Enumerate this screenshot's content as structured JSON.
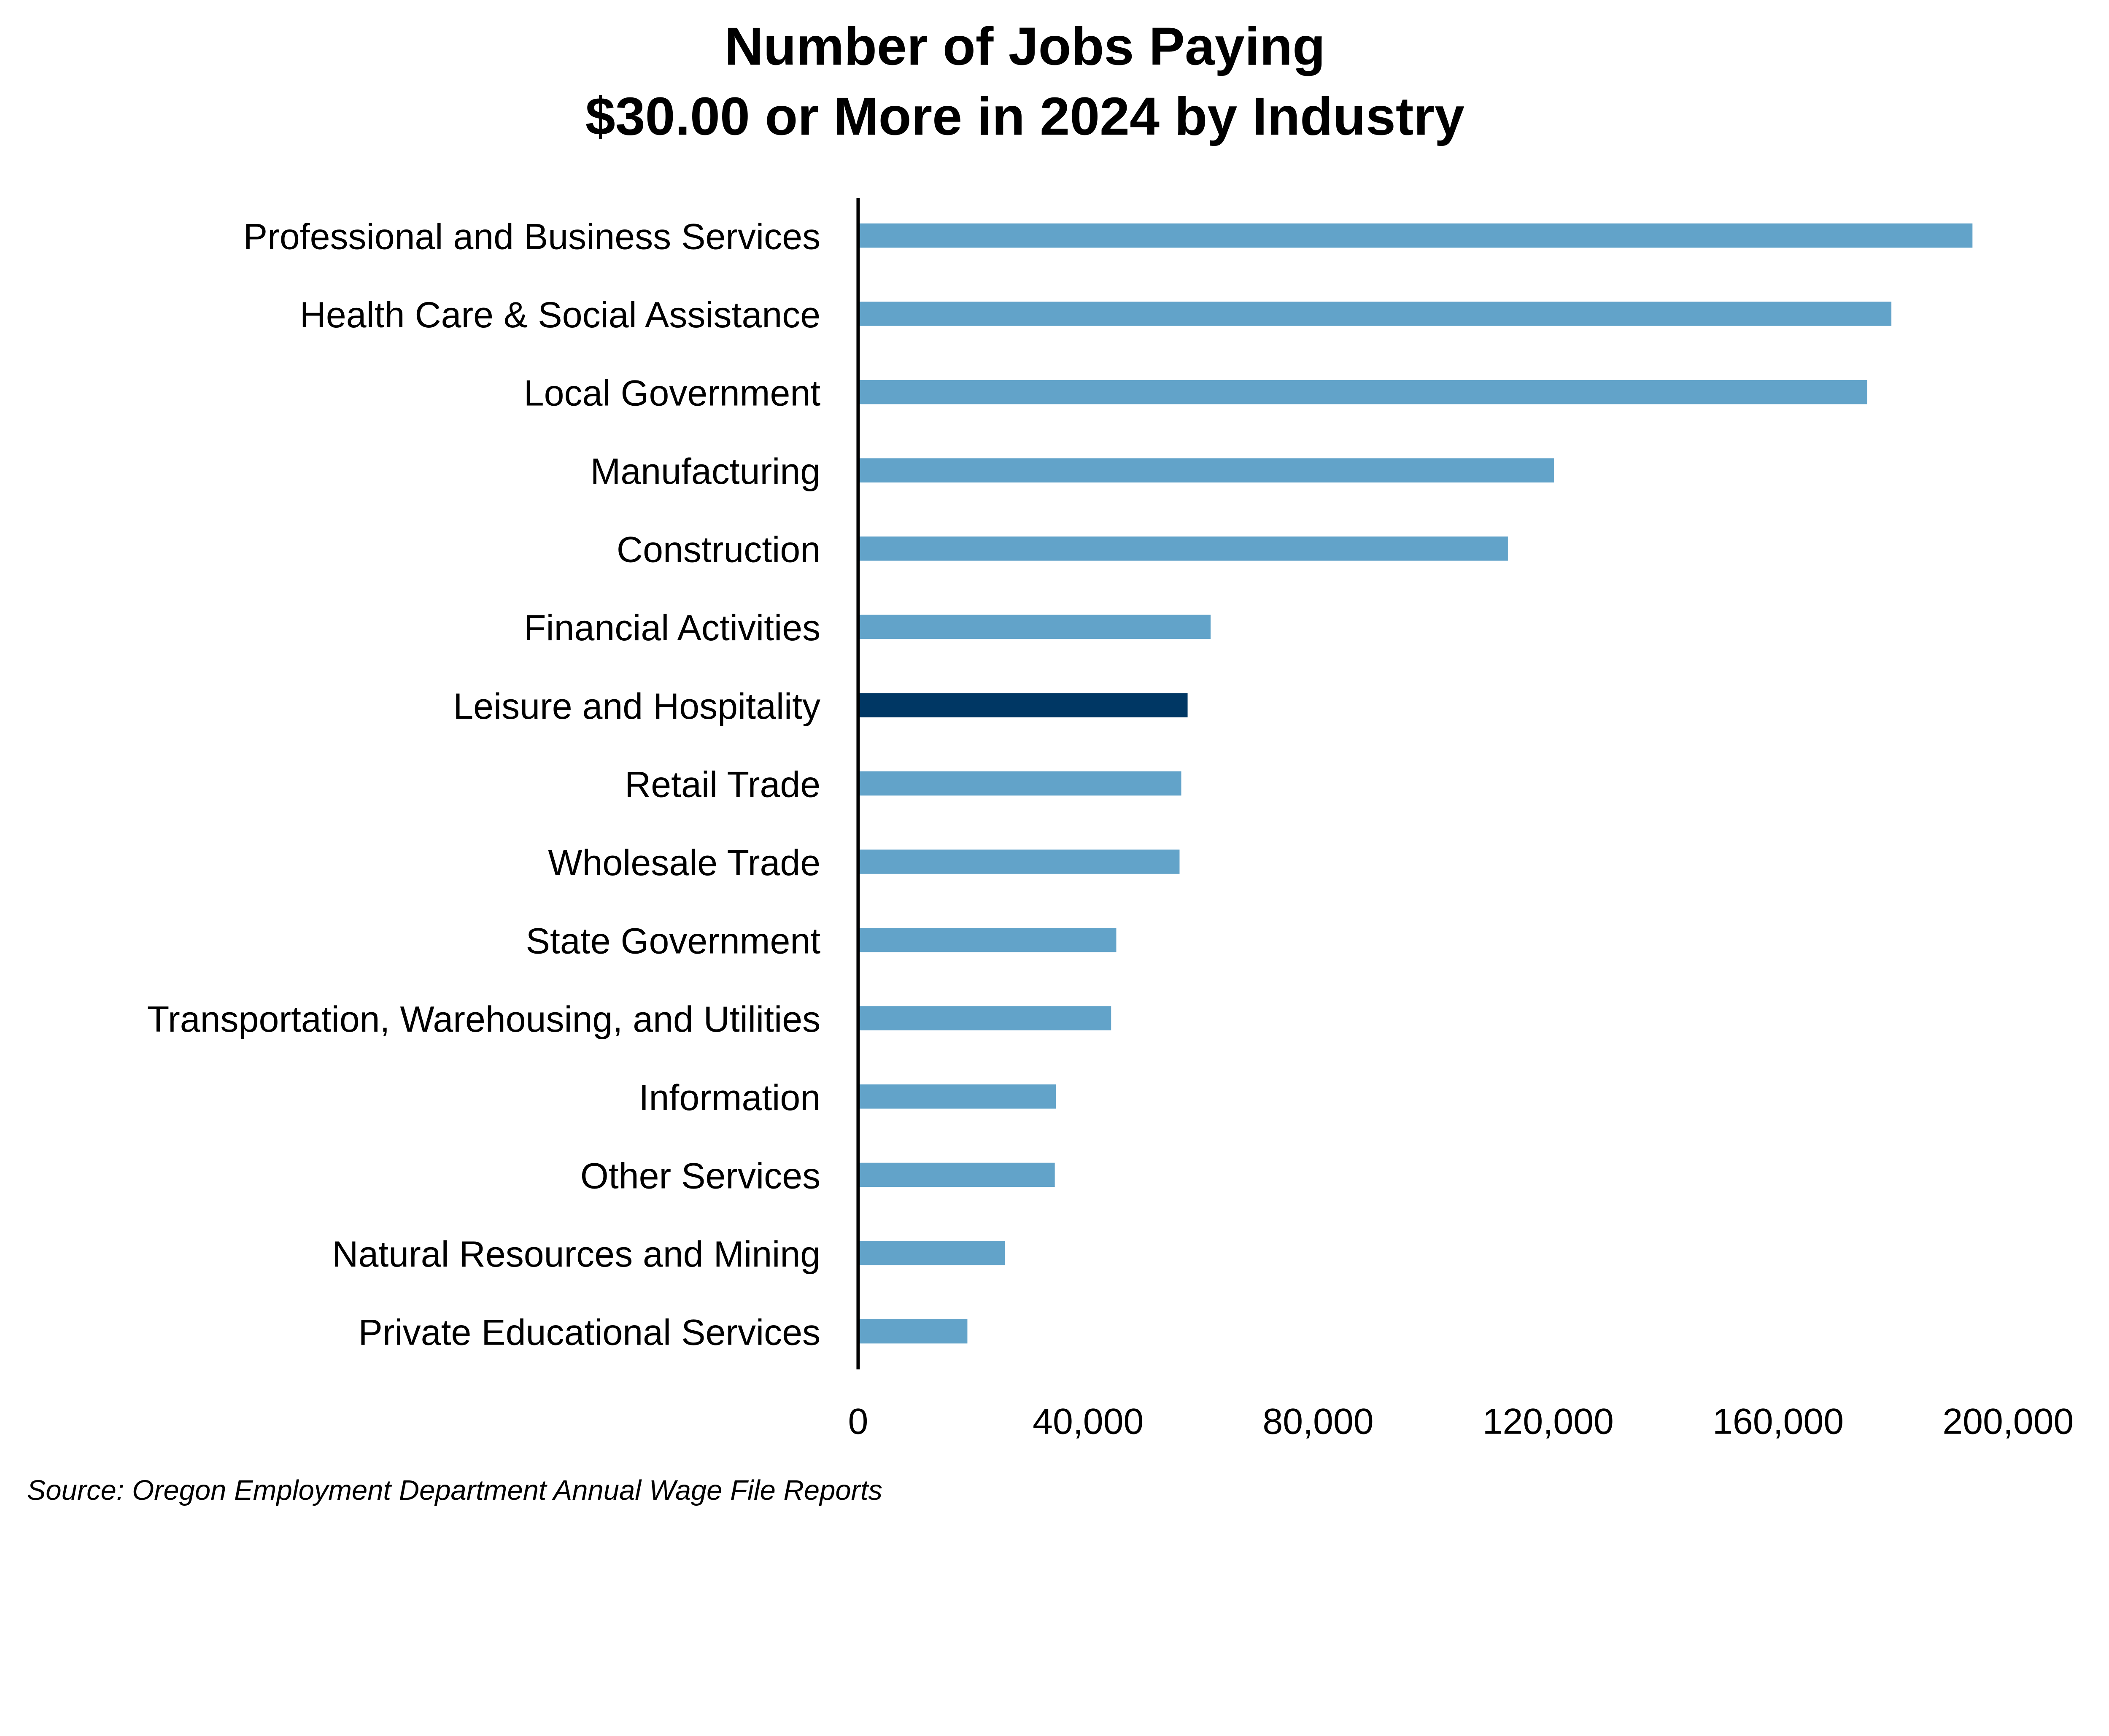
{
  "chart_data": {
    "type": "bar",
    "orientation": "horizontal",
    "title_lines": [
      "Number of Jobs Paying",
      "$30.00 or More in 2024 by Industry"
    ],
    "categories": [
      "Professional and Business Services",
      "Health Care & Social Assistance",
      "Local Government",
      "Manufacturing",
      "Construction",
      "Financial Activities",
      "Leisure and Hospitality",
      "Retail Trade",
      "Wholesale Trade",
      "State Government",
      "Transportation, Warehousing, and Utilities",
      "Information",
      "Other Services",
      "Natural Resources and Mining",
      "Private Educational Services"
    ],
    "values": [
      193800,
      179700,
      175500,
      121000,
      113000,
      61300,
      57300,
      56200,
      55900,
      44900,
      44000,
      34400,
      34200,
      25500,
      19000
    ],
    "highlight_category": "Leisure and Hospitality",
    "xlim": [
      0,
      200000
    ],
    "x_ticks": [
      "0",
      "40,000",
      "80,000",
      "120,000",
      "160,000",
      "200,000"
    ],
    "x_tick_values": [
      0,
      40000,
      80000,
      120000,
      160000,
      200000
    ],
    "grid": false,
    "legend": "none",
    "colors": {
      "bar": "#62A3C9",
      "highlight": "#003764",
      "axis": "#000000"
    },
    "source": "Source: Oregon Employment Department Annual Wage File Reports"
  }
}
